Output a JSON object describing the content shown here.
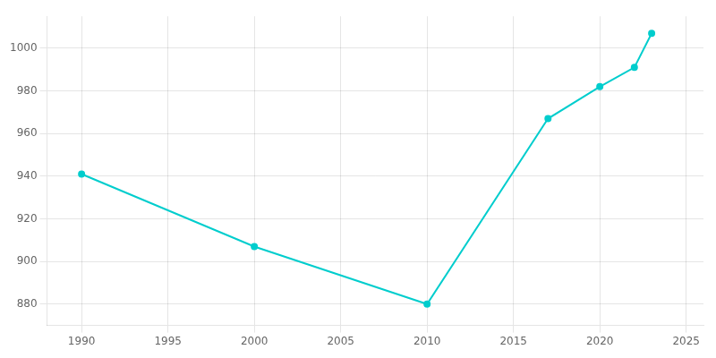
{
  "chart_data": {
    "type": "line",
    "x": [
      1990,
      2000,
      2010,
      2017,
      2020,
      2022,
      2023
    ],
    "values": [
      941,
      907,
      880,
      967,
      982,
      991,
      1007
    ],
    "color": "#00CDCD",
    "marker": "circle",
    "xlim": [
      1988,
      2026
    ],
    "xticks": [
      1990,
      1995,
      2000,
      2005,
      2010,
      2015,
      2020,
      2025
    ],
    "ylim": [
      870,
      1015
    ],
    "yticks": [
      880,
      900,
      920,
      940,
      960,
      980,
      1000
    ],
    "grid": true
  }
}
